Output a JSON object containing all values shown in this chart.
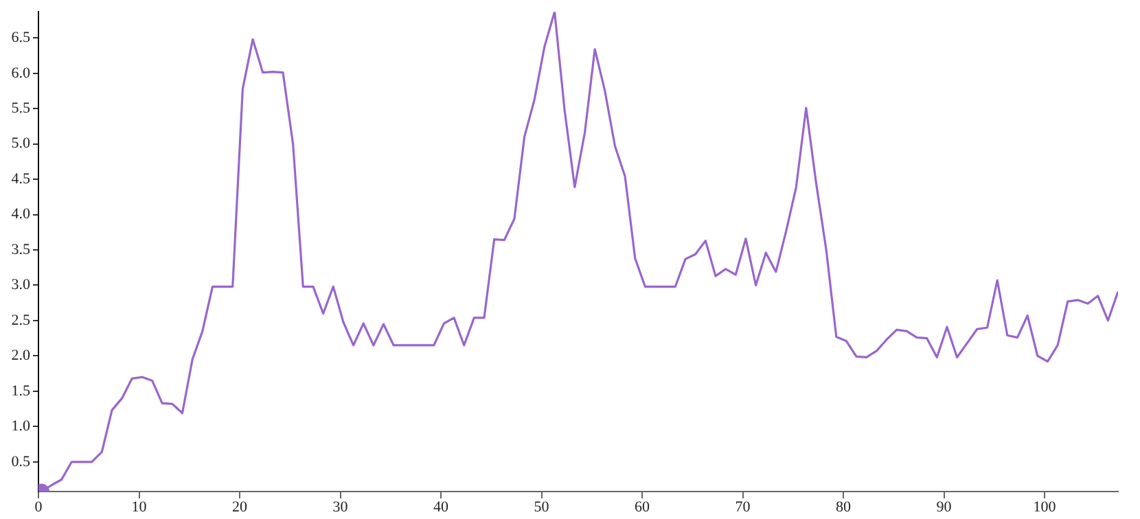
{
  "chart_data": {
    "type": "line",
    "x": [
      0.3,
      1.3,
      2.3,
      3.3,
      4.3,
      5.3,
      6.3,
      7.3,
      8.3,
      9.3,
      10.3,
      11.3,
      12.3,
      13.3,
      14.3,
      15.3,
      16.3,
      17.3,
      18.3,
      19.3,
      20.3,
      21.3,
      22.3,
      23.3,
      24.3,
      25.3,
      26.3,
      27.3,
      28.3,
      29.3,
      30.3,
      31.3,
      32.3,
      33.3,
      34.3,
      35.3,
      36.3,
      37.3,
      38.3,
      39.3,
      40.3,
      41.3,
      42.3,
      43.3,
      44.3,
      45.3,
      46.3,
      47.3,
      48.3,
      49.3,
      50.3,
      51.3,
      52.3,
      53.3,
      54.3,
      55.3,
      56.3,
      57.3,
      58.3,
      59.3,
      60.3,
      61.3,
      62.3,
      63.3,
      64.3,
      65.3,
      66.3,
      67.3,
      68.3,
      69.3,
      70.3,
      71.3,
      72.3,
      73.3,
      74.3,
      75.3,
      76.3,
      77.3,
      78.3,
      79.3,
      80.3,
      81.3,
      82.3,
      83.3,
      84.3,
      85.3,
      86.3,
      87.3,
      88.3,
      89.3,
      90.3,
      91.3,
      92.3,
      93.3,
      94.3,
      95.3,
      96.3,
      97.3,
      98.3,
      99.3,
      100.3,
      101.3,
      102.3,
      103.3,
      104.3,
      105.3,
      106.3,
      107.3
    ],
    "series": [
      {
        "type": "scatter",
        "color": "#9966cc",
        "marker": "circle",
        "x": [
          0.3
        ],
        "values": [
          0.08
        ]
      },
      {
        "color": "#9966cc",
        "values": [
          0.08,
          0.17,
          0.25,
          0.5,
          0.5,
          0.5,
          0.64,
          1.23,
          1.4,
          1.68,
          1.7,
          1.65,
          1.33,
          1.32,
          1.19,
          1.95,
          2.35,
          2.98,
          2.98,
          2.98,
          5.78,
          6.48,
          6.01,
          6.02,
          6.01,
          5.0,
          2.98,
          2.98,
          2.6,
          2.98,
          2.48,
          2.15,
          2.46,
          2.15,
          2.45,
          2.15,
          2.15,
          2.15,
          2.15,
          2.15,
          2.46,
          2.54,
          2.15,
          2.54,
          2.54,
          3.65,
          3.64,
          3.94,
          5.1,
          5.63,
          6.38,
          6.87,
          5.47,
          4.39,
          5.16,
          6.34,
          5.75,
          4.97,
          4.54,
          3.38,
          2.98,
          2.98,
          2.98,
          2.98,
          3.37,
          3.44,
          3.63,
          3.13,
          3.23,
          3.15,
          3.66,
          3.0,
          3.46,
          3.19,
          3.76,
          4.38,
          5.51,
          4.44,
          3.5,
          2.27,
          2.21,
          1.99,
          1.98,
          2.07,
          2.23,
          2.37,
          2.35,
          2.26,
          2.25,
          1.98,
          2.41,
          1.98,
          2.18,
          2.38,
          2.4,
          3.07,
          2.29,
          2.26,
          2.57,
          2.0,
          1.92,
          2.15,
          2.77,
          2.79,
          2.74,
          2.85,
          2.5,
          2.91
        ]
      }
    ],
    "xlim": [
      0,
      107.3
    ],
    "xticks": [
      0,
      10,
      20,
      30,
      40,
      50,
      60,
      70,
      80,
      90,
      100
    ],
    "ylim": [
      0.08,
      6.87
    ],
    "yticks": [
      0.5,
      {
        "value": 1,
        "label": "1.0"
      },
      1.5,
      {
        "value": 2,
        "label": "2.0"
      },
      2.5,
      {
        "value": 3,
        "label": "3.0"
      },
      3.5,
      {
        "value": 4,
        "label": "4.0"
      },
      4.5,
      {
        "value": 5,
        "label": "5.0"
      },
      5.5,
      {
        "value": 6,
        "label": "6.0"
      },
      6.5
    ],
    "grid": false,
    "legend": false,
    "line_style": "solid"
  }
}
